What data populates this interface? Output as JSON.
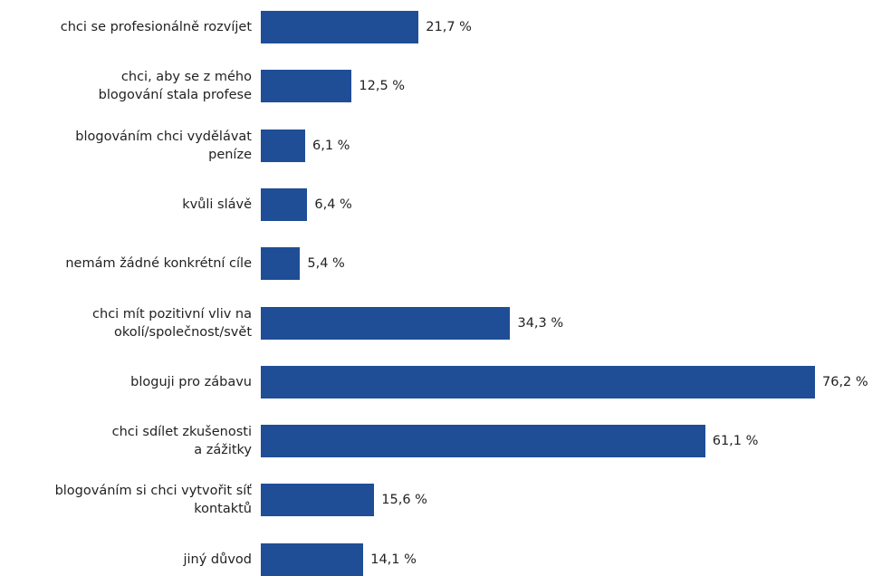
{
  "chart_data": {
    "type": "bar",
    "orientation": "horizontal",
    "color": "#1f4e96",
    "categories": [
      "chci se profesionálně rozvíjet",
      "chci, aby se z mého\nblogování stala profese",
      "blogováním chci vydělávat\npeníze",
      "kvůli slávě",
      "nemám žádné konkrétní cíle",
      "chci mít pozitivní vliv na\nokolí/společnost/svět",
      "bloguji pro zábavu",
      "chci sdílet zkušenosti\na zážitky",
      "blogováním si chci vytvořit síť\nkontaktů",
      "jiný důvod"
    ],
    "values": [
      21.7,
      12.5,
      6.1,
      6.4,
      5.4,
      34.3,
      76.2,
      61.1,
      15.6,
      14.1
    ],
    "value_labels": [
      "21,7 %",
      "12,5 %",
      "6,1 %",
      "6,4 %",
      "5,4 %",
      "34,3 %",
      "76,2 %",
      "61,1 %",
      "15,6 %",
      "14,1 %"
    ]
  }
}
